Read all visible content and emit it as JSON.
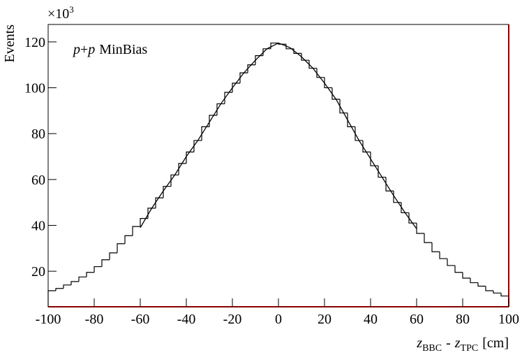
{
  "chart_data": {
    "type": "histogram",
    "ylabel": "Events",
    "y_multiplier": {
      "base": "×10",
      "exponent": "3"
    },
    "xlabel": {
      "var1": "z",
      "sub1": "BBC",
      "sep": "-",
      "var2": "z",
      "sub2": "TPC",
      "unit": "[cm]"
    },
    "annotation": {
      "p1": "p",
      "plus": "+",
      "p2": "p",
      "text": "MinBias"
    },
    "bins": [
      -100,
      -96.67,
      -93.33,
      -90,
      -86.67,
      -83.33,
      -80,
      -76.67,
      -73.33,
      -70,
      -66.67,
      -63.33,
      -60,
      -56.67,
      -53.33,
      -50,
      -46.67,
      -43.33,
      -40,
      -36.67,
      -33.33,
      -30,
      -26.67,
      -23.33,
      -20,
      -16.67,
      -13.33,
      -10,
      -6.67,
      -3.33,
      0,
      3.33,
      6.67,
      10,
      13.33,
      16.67,
      20,
      23.33,
      26.67,
      30,
      33.33,
      36.67,
      40,
      43.33,
      46.67,
      50,
      53.33,
      56.67,
      60,
      63.33,
      66.67,
      70,
      73.33,
      76.67,
      80,
      83.33,
      86.67,
      90,
      93.33,
      96.67,
      100
    ],
    "values": [
      11.5,
      12.5,
      14,
      15.5,
      17.5,
      19.5,
      22,
      25,
      28,
      32,
      35.5,
      39.5,
      43,
      47.5,
      52,
      57,
      62,
      67,
      72,
      77,
      83,
      88,
      93,
      98,
      102,
      106.5,
      110,
      114,
      117,
      119.5,
      119,
      117,
      115,
      112,
      108.5,
      104.5,
      100,
      95,
      89,
      83,
      77,
      72,
      66,
      61,
      55,
      50,
      45.5,
      41,
      36.5,
      32.5,
      28.5,
      25.5,
      22.5,
      19.5,
      17,
      15,
      13.5,
      11.5,
      10.5,
      9.2
    ],
    "color": "#000000",
    "fit": {
      "x": [
        -60,
        -55,
        -50,
        -45,
        -40,
        -35,
        -30,
        -25,
        -20,
        -15,
        -10,
        -5,
        0,
        5,
        10,
        15,
        20,
        25,
        30,
        35,
        40,
        45,
        50,
        55,
        60
      ],
      "values": [
        39,
        47.5,
        55,
        62,
        70,
        77,
        85,
        93,
        100,
        106.5,
        112,
        117,
        119.5,
        117.5,
        113.5,
        108.5,
        102,
        95,
        86,
        77,
        69,
        61,
        53,
        45.5,
        38.5
      ],
      "color": "#000000"
    },
    "xlim": [
      -100,
      100
    ],
    "ylim": [
      4.5,
      127.6
    ],
    "xticks": [
      -100,
      -80,
      -60,
      -40,
      -20,
      0,
      20,
      40,
      60,
      80,
      100
    ],
    "yticks": [
      20,
      40,
      60,
      80,
      100,
      120
    ]
  }
}
